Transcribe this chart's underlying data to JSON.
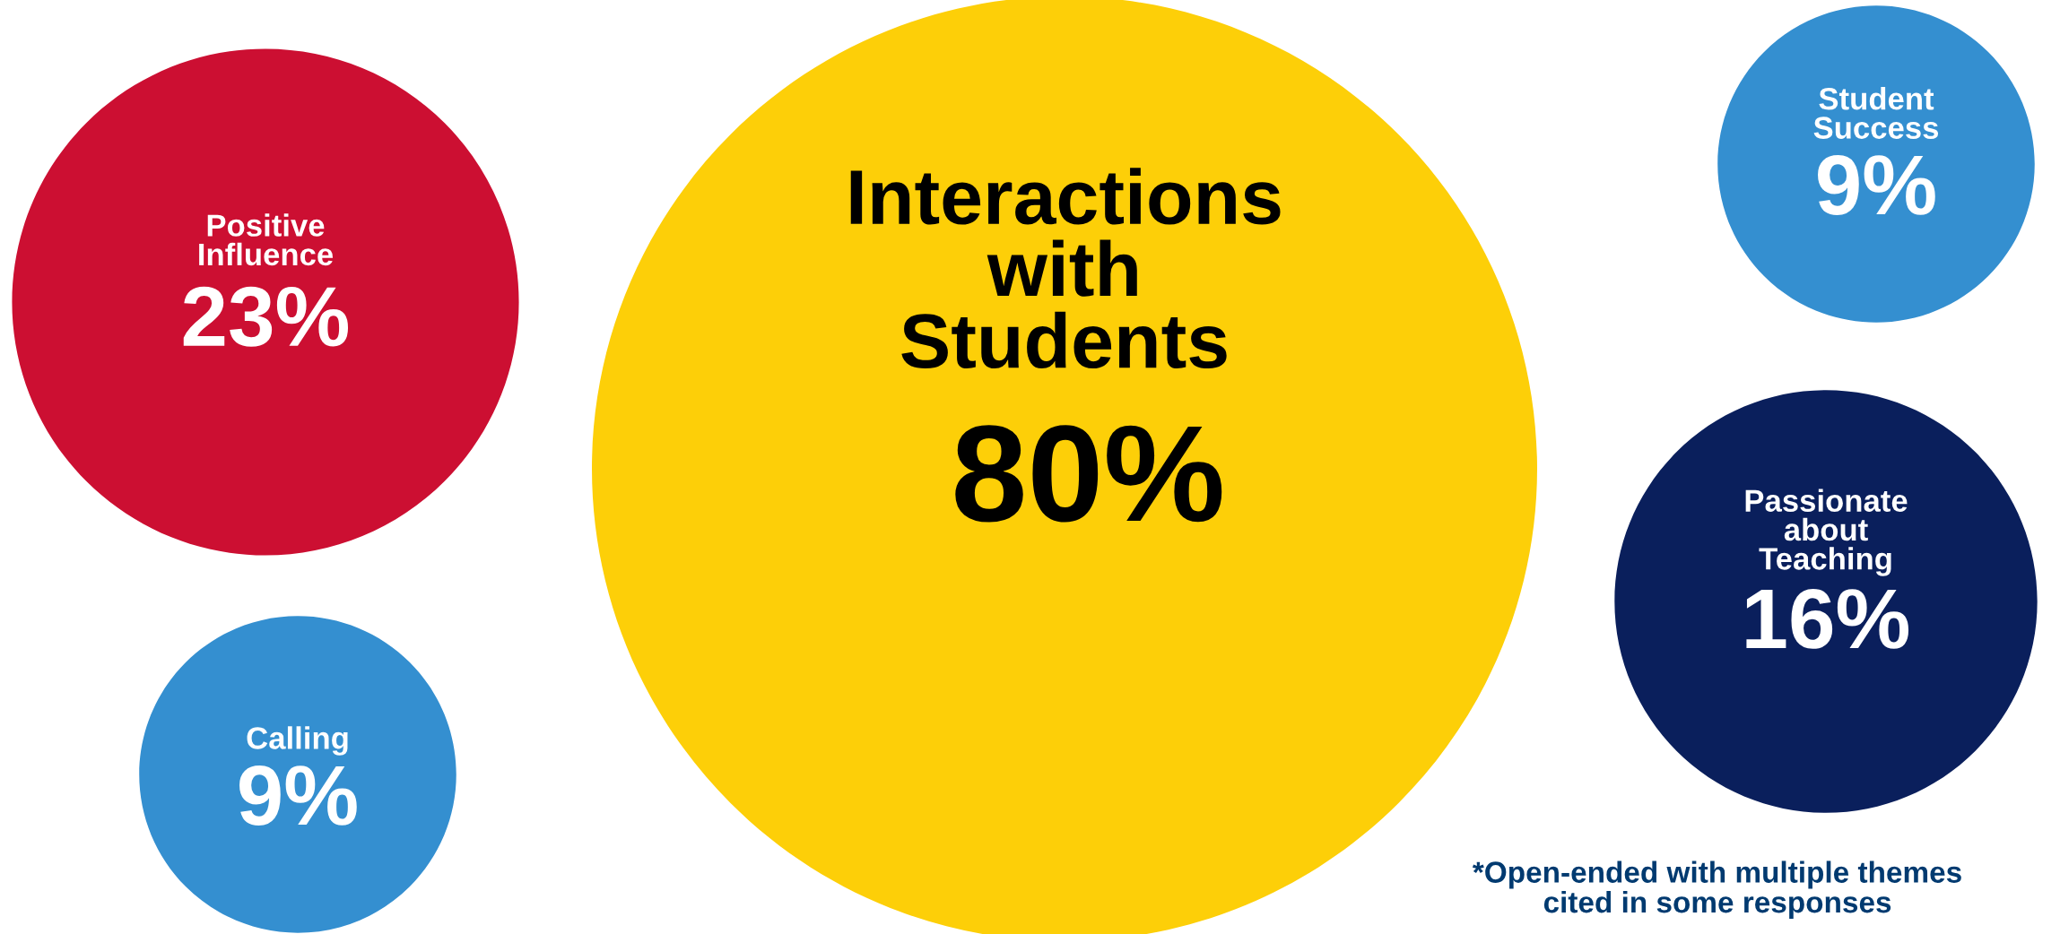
{
  "chart_data": {
    "type": "other",
    "categories": [
      "Positive\nInfluence",
      "Calling",
      "Interactions\nwith\nStudents",
      "Student\nSuccess",
      "Passionate\nabout\nTeaching"
    ],
    "values": [
      23,
      9,
      80,
      9,
      16
    ],
    "value_labels": [
      "23%",
      "9%",
      "80%",
      "9%",
      "16%"
    ],
    "colors": [
      "#cc0f32",
      "#348fd0",
      "#fdcf08",
      "#348fd0",
      "#0a1f5c"
    ],
    "annotations": [
      "*Open-ended with multiple themes\ncited in some responses"
    ]
  }
}
